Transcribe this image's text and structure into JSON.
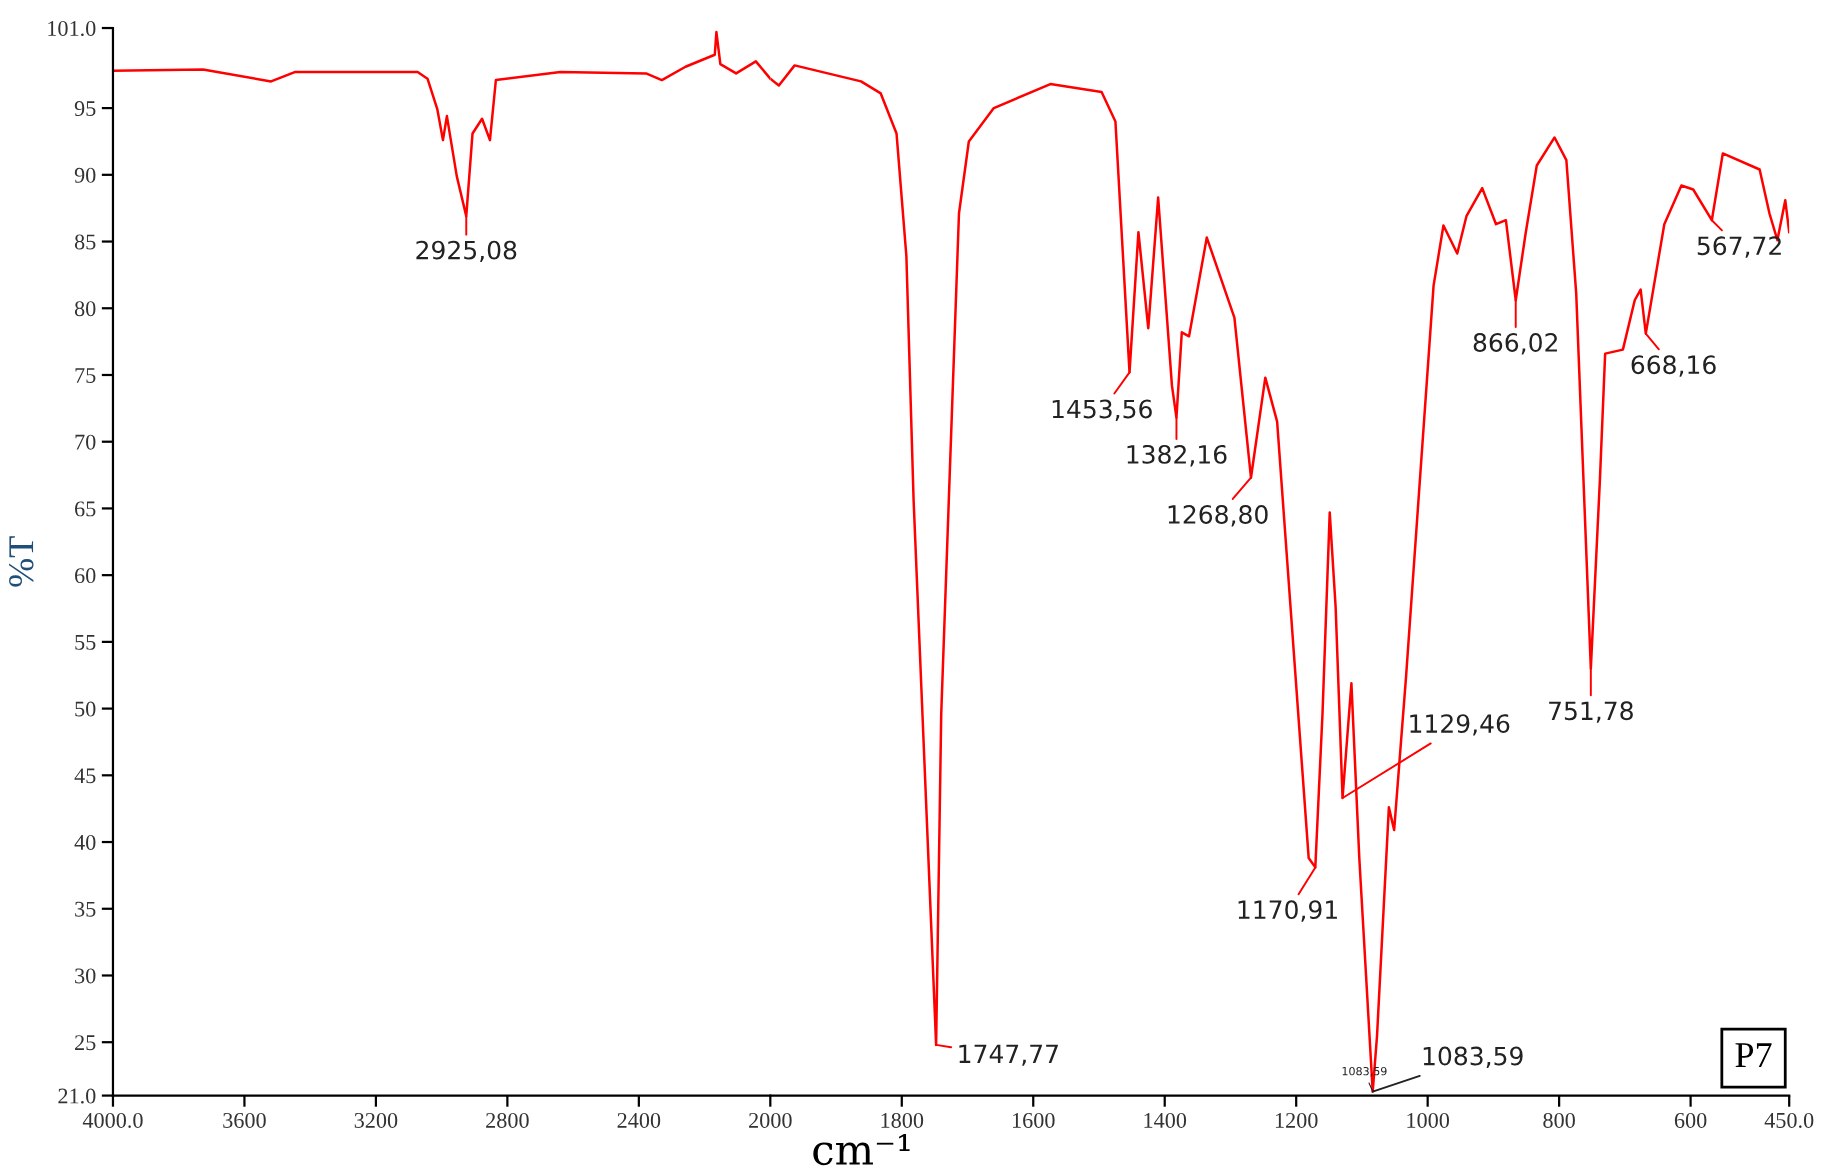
{
  "chart_data": [
    {
      "type": "line",
      "ylabel": "%T",
      "xlim": [
        4000,
        2000
      ],
      "ylim": [
        21,
        101
      ],
      "xticks": [
        {
          "value": 4000,
          "label": "4000.0"
        },
        3600,
        3200,
        2800,
        2400
      ],
      "yticks": [
        {
          "value": 21,
          "label": "21.0"
        },
        25,
        30,
        35,
        40,
        45,
        50,
        55,
        60,
        65,
        70,
        75,
        80,
        85,
        90,
        95,
        {
          "value": 101,
          "label": "101.0"
        }
      ],
      "grid": false,
      "marker": "none",
      "line_style": "solid",
      "series": [
        {
          "color": "#ff0000",
          "x": [
            4000,
            3726,
            3519,
            3447,
            3073,
            3043,
            3013,
            2996,
            2984,
            2954,
            2925.08,
            2906,
            2877,
            2853,
            2835,
            2639,
            2378,
            2330,
            2258,
            2169,
            2164,
            2152,
            2104,
            2044,
            2000
          ],
          "values": [
            97.8,
            97.9,
            97.0,
            97.7,
            97.7,
            97.2,
            94.9,
            92.6,
            94.4,
            89.9,
            86.9,
            93.1,
            94.2,
            92.6,
            97.1,
            97.7,
            97.6,
            97.1,
            98.1,
            99.0,
            100.7,
            98.3,
            97.6,
            98.5,
            97.2
          ]
        }
      ],
      "annotations": [
        {
          "text": "2925,08",
          "x": 2925.08,
          "y": 86.9
        }
      ]
    },
    {
      "type": "line",
      "xlabel": "cm⁻¹",
      "xlim": [
        2000,
        450
      ],
      "ylim": [
        21,
        101
      ],
      "xticks": [
        2000,
        1800,
        1600,
        1400,
        1200,
        1000,
        800,
        600,
        {
          "value": 450,
          "label": "450.0"
        }
      ],
      "tick_labels": "x",
      "grid": false,
      "marker": "none",
      "line_style": "solid",
      "series": [
        {
          "color": "#ff0000",
          "x": [
            2000,
            1987,
            1963,
            1862,
            1832,
            1808,
            1793,
            1782,
            1747.77,
            1740,
            1713,
            1698,
            1660,
            1574,
            1496,
            1475,
            1453.56,
            1440,
            1425,
            1410,
            1389,
            1382.16,
            1374,
            1363,
            1336,
            1294,
            1268.8,
            1247,
            1229,
            1181,
            1170.91,
            1160,
            1149,
            1140,
            1129.46,
            1116,
            1104,
            1083.59,
            1077,
            1059,
            1051,
            1033,
            991,
            976,
            955,
            941,
            917,
            896,
            881,
            866.02,
            851,
            834,
            807,
            789,
            774,
            751.78,
            738,
            730,
            703,
            685,
            676,
            668.16,
            640,
            614,
            596,
            567.72,
            551,
            495,
            480,
            468,
            456,
            450
          ],
          "values": [
            97.2,
            96.7,
            98.2,
            97.0,
            96.1,
            93.1,
            83.9,
            65.6,
            24.8,
            49.6,
            87.1,
            92.5,
            95.0,
            96.8,
            96.2,
            94.0,
            75.2,
            85.7,
            78.5,
            88.3,
            74.2,
            71.8,
            78.2,
            77.9,
            85.3,
            79.3,
            67.3,
            74.8,
            71.5,
            38.8,
            38.1,
            49.6,
            64.7,
            57.6,
            43.3,
            51.9,
            38.8,
            21.3,
            25.5,
            42.6,
            40.9,
            52.3,
            81.7,
            86.2,
            84.1,
            86.9,
            89.0,
            86.3,
            86.6,
            80.6,
            85.6,
            90.7,
            92.8,
            91.1,
            81.1,
            53.0,
            67.1,
            76.6,
            76.9,
            80.6,
            81.4,
            78.1,
            86.3,
            89.2,
            88.9,
            86.6,
            91.6,
            90.4,
            87.1,
            85.1,
            88.1,
            85.7
          ]
        }
      ],
      "annotations": [
        {
          "text": "1747,77",
          "x": 1747.77,
          "y": 24.8
        },
        {
          "text": "1453,56",
          "x": 1453.56,
          "y": 75.2
        },
        {
          "text": "1382,16",
          "x": 1382.16,
          "y": 71.8
        },
        {
          "text": "1268,80",
          "x": 1268.8,
          "y": 67.3
        },
        {
          "text": "1170,91",
          "x": 1170.91,
          "y": 38.1
        },
        {
          "text": "1129,46",
          "x": 1129.46,
          "y": 43.3
        },
        {
          "text": "1083,59",
          "x": 1083.59,
          "y": 21.3
        },
        {
          "text": "1083,59",
          "x": 1083.59,
          "y": 21.3
        },
        {
          "text": "866,02",
          "x": 866.02,
          "y": 80.6
        },
        {
          "text": "751,78",
          "x": 751.78,
          "y": 53.0
        },
        {
          "text": "668,16",
          "x": 668.16,
          "y": 78.1
        },
        {
          "text": "567,72",
          "x": 567.72,
          "y": 86.6
        },
        "P7"
      ]
    }
  ]
}
